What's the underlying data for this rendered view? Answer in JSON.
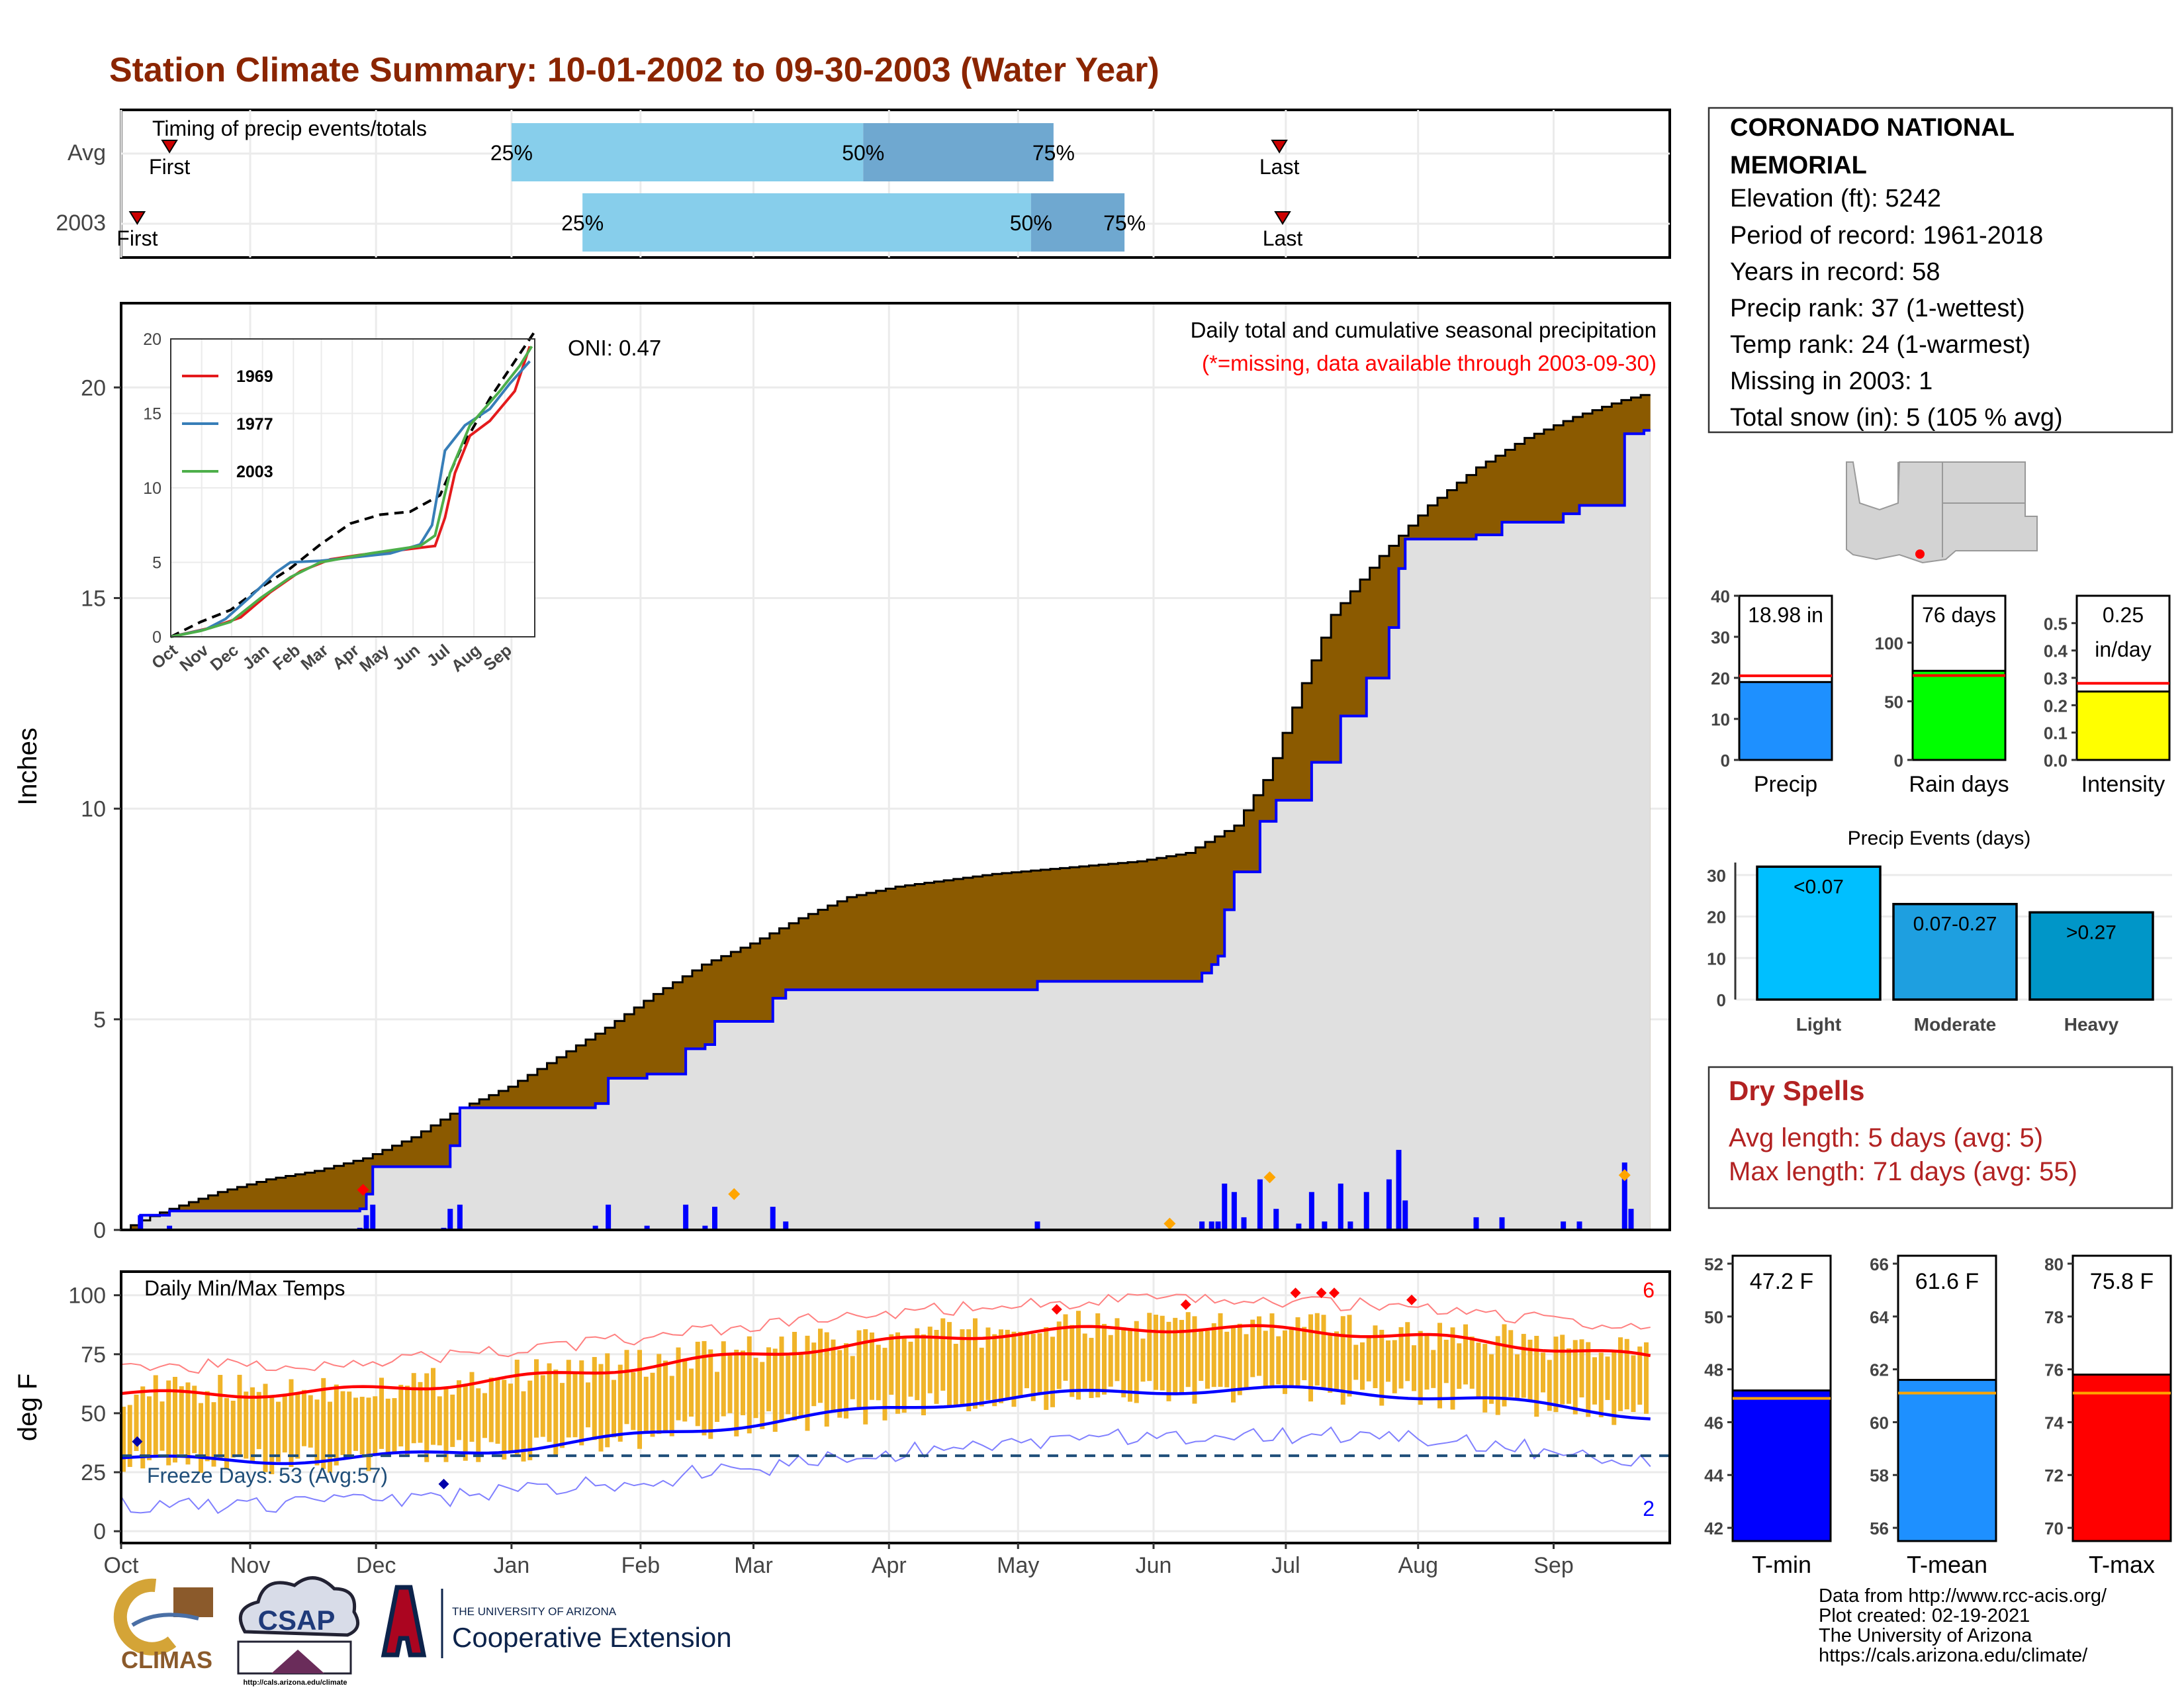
{
  "title": "Station Climate Summary: 10-01-2002 to 09-30-2003 (Water Year)",
  "colors": {
    "title": "#8B2500",
    "brown": "#8B5A00",
    "grey_fill": "#E0E0E0",
    "blue": "#0000FF",
    "light_blue": "#87CEEB",
    "mid_blue": "#6FA8D0",
    "tmin_blue": "#0000FF",
    "tmean_blue": "#1E90FF",
    "tmax_red": "#FF0000",
    "gold": "#F0B429",
    "rain_green": "#00FF00",
    "intensity_yellow": "#FFFF00",
    "event_light": "#00BFFF",
    "event_mod": "#1EA0E0",
    "event_heavy": "#0096C8",
    "dry_red": "#B22222",
    "freeze_line": "#1F4E79"
  },
  "months": [
    "Oct",
    "Nov",
    "Dec",
    "Jan",
    "Feb",
    "Mar",
    "Apr",
    "May",
    "Jun",
    "Jul",
    "Aug",
    "Sep"
  ],
  "timing": {
    "label": "Timing of precip events/totals",
    "rows": [
      "Avg",
      "2003"
    ],
    "first_label": "First",
    "last_label": "Last",
    "avg": {
      "first_day": 15,
      "p25": 121,
      "p50": 230,
      "p75": 289,
      "last_day": 359
    },
    "y2003": {
      "first_day": 5,
      "p25": 143,
      "p50": 282,
      "p75": 311,
      "last_day": 360
    },
    "pct_labels": [
      "25%",
      "50%",
      "75%"
    ]
  },
  "main": {
    "ylabel": "Inches",
    "oni": "ONI: 0.47",
    "desc1": "Daily total and cumulative seasonal precipitation",
    "desc2": "(*=missing, data available through 2003-09-30)",
    "yticks": [
      0,
      5,
      10,
      15,
      20
    ],
    "ylim": [
      0,
      22
    ],
    "avg_cum": [
      [
        0,
        0
      ],
      [
        8,
        0.3
      ],
      [
        15,
        0.5
      ],
      [
        30,
        0.9
      ],
      [
        45,
        1.2
      ],
      [
        60,
        1.4
      ],
      [
        75,
        1.7
      ],
      [
        90,
        2.2
      ],
      [
        105,
        2.9
      ],
      [
        120,
        3.4
      ],
      [
        135,
        4.1
      ],
      [
        150,
        4.8
      ],
      [
        165,
        5.6
      ],
      [
        180,
        6.3
      ],
      [
        195,
        6.8
      ],
      [
        210,
        7.4
      ],
      [
        225,
        7.9
      ],
      [
        240,
        8.15
      ],
      [
        255,
        8.3
      ],
      [
        270,
        8.45
      ],
      [
        285,
        8.55
      ],
      [
        300,
        8.65
      ],
      [
        315,
        8.75
      ],
      [
        330,
        8.95
      ],
      [
        345,
        9.6
      ],
      [
        355,
        10.8
      ],
      [
        365,
        12.8
      ],
      [
        375,
        14.6
      ],
      [
        390,
        16.0
      ],
      [
        405,
        17.2
      ],
      [
        420,
        18.1
      ],
      [
        435,
        18.8
      ],
      [
        450,
        19.3
      ],
      [
        465,
        19.7
      ],
      [
        480,
        20.0
      ]
    ],
    "obs_cum_steps": [
      [
        0,
        0
      ],
      [
        6,
        0.35
      ],
      [
        15,
        0.45
      ],
      [
        60,
        0.45
      ],
      [
        74,
        0.5
      ],
      [
        76,
        0.85
      ],
      [
        78,
        1.5
      ],
      [
        98,
        1.5
      ],
      [
        102,
        2.0
      ],
      [
        105,
        2.9
      ],
      [
        145,
        2.9
      ],
      [
        147,
        3.0
      ],
      [
        151,
        3.6
      ],
      [
        160,
        3.6
      ],
      [
        163,
        3.7
      ],
      [
        172,
        3.7
      ],
      [
        175,
        4.3
      ],
      [
        181,
        4.4
      ],
      [
        184,
        4.95
      ],
      [
        200,
        4.95
      ],
      [
        202,
        5.5
      ],
      [
        206,
        5.7
      ],
      [
        282,
        5.7
      ],
      [
        284,
        5.9
      ],
      [
        305,
        5.9
      ],
      [
        335,
        6.1
      ],
      [
        338,
        6.3
      ],
      [
        340,
        6.5
      ],
      [
        342,
        7.6
      ],
      [
        345,
        8.5
      ],
      [
        353,
        9.7
      ],
      [
        358,
        10.2
      ],
      [
        369,
        11.1
      ],
      [
        378,
        12.2
      ],
      [
        386,
        13.1
      ],
      [
        393,
        14.3
      ],
      [
        396,
        15.7
      ],
      [
        398,
        16.4
      ],
      [
        420,
        16.5
      ],
      [
        428,
        16.8
      ],
      [
        445,
        16.8
      ],
      [
        447,
        17.0
      ],
      [
        452,
        17.2
      ],
      [
        464,
        17.2
      ],
      [
        466,
        18.9
      ],
      [
        472,
        18.98
      ]
    ],
    "daily_bars": [
      [
        6,
        0.35
      ],
      [
        15,
        0.1
      ],
      [
        74,
        0.05
      ],
      [
        76,
        0.35
      ],
      [
        78,
        0.6
      ],
      [
        100,
        0.05
      ],
      [
        102,
        0.5
      ],
      [
        105,
        0.6
      ],
      [
        147,
        0.1
      ],
      [
        151,
        0.6
      ],
      [
        163,
        0.1
      ],
      [
        175,
        0.6
      ],
      [
        181,
        0.1
      ],
      [
        184,
        0.55
      ],
      [
        202,
        0.55
      ],
      [
        206,
        0.2
      ],
      [
        284,
        0.2
      ],
      [
        335,
        0.2
      ],
      [
        338,
        0.2
      ],
      [
        340,
        0.2
      ],
      [
        342,
        1.1
      ],
      [
        345,
        0.9
      ],
      [
        348,
        0.3
      ],
      [
        353,
        1.2
      ],
      [
        358,
        0.5
      ],
      [
        365,
        0.15
      ],
      [
        369,
        0.9
      ],
      [
        373,
        0.2
      ],
      [
        378,
        1.1
      ],
      [
        381,
        0.2
      ],
      [
        386,
        0.9
      ],
      [
        393,
        1.2
      ],
      [
        396,
        1.9
      ],
      [
        398,
        0.7
      ],
      [
        420,
        0.3
      ],
      [
        428,
        0.3
      ],
      [
        447,
        0.2
      ],
      [
        452,
        0.2
      ],
      [
        466,
        1.6
      ],
      [
        468,
        0.5
      ]
    ],
    "max_markers": [
      [
        75,
        0.95,
        "red"
      ],
      [
        190,
        0.85,
        "orange"
      ],
      [
        325,
        0.15,
        "orange"
      ],
      [
        356,
        1.25,
        "orange"
      ],
      [
        466,
        1.3,
        "orange"
      ]
    ],
    "inset": {
      "yticks": [
        0,
        5,
        10,
        15,
        20
      ],
      "months": [
        "Oct",
        "Nov",
        "Dec",
        "Jan",
        "Feb",
        "Mar",
        "Apr",
        "May",
        "Jun",
        "Jul",
        "Aug",
        "Sep"
      ],
      "series": [
        {
          "name": "1969",
          "color": "#E41A1C"
        },
        {
          "name": "1977",
          "color": "#377EB8"
        },
        {
          "name": "2003",
          "color": "#4DAF4A"
        }
      ]
    }
  },
  "temps": {
    "ylabel": "deg F",
    "label": "Daily Min/Max Temps",
    "freeze_label": "Freeze Days: 53 (Avg:57)",
    "count_top": "6",
    "count_bottom": "2",
    "yticks": [
      0,
      25,
      50,
      75,
      100
    ],
    "ylim": [
      -5,
      110
    ],
    "freeze_line": 32
  },
  "info": {
    "station": "CORONADO NATIONAL",
    "station2": "MEMORIAL",
    "lines": [
      "Elevation (ft): 5242",
      "Period of record: 1961-2018",
      "Years in record: 58",
      "Precip rank: 37 (1-wettest)",
      "Temp rank: 24 (1-warmest)",
      "Missing in 2003: 1",
      "Total snow (in): 5 (105 % avg)"
    ]
  },
  "precip_bars": [
    {
      "name": "Precip",
      "label": "18.98 in",
      "value": 18.98,
      "avg": 20.5,
      "max": 40,
      "ticks": [
        0,
        10,
        20,
        30,
        40
      ],
      "color": "#1E90FF"
    },
    {
      "name": "Rain days",
      "label": "76 days",
      "value": 76,
      "avg": 72,
      "max": 140,
      "ticks": [
        0,
        50,
        100
      ],
      "color": "#00FF00"
    },
    {
      "name": "Intensity",
      "label": "0.25",
      "label2": "in/day",
      "value": 0.25,
      "avg": 0.28,
      "max": 0.6,
      "ticks": [
        "0.0",
        "0.1",
        "0.2",
        "0.3",
        "0.4",
        "0.5"
      ],
      "tickvals": [
        0,
        0.1,
        0.2,
        0.3,
        0.4,
        0.5
      ],
      "color": "#FFFF00"
    }
  ],
  "events": {
    "title": "Precip Events (days)",
    "yticks": [
      0,
      10,
      20,
      30
    ],
    "ymax": 33,
    "bars": [
      {
        "name": "Light",
        "label": "<0.07",
        "value": 32,
        "color": "#00BFFF"
      },
      {
        "name": "Moderate",
        "label": "0.07-0.27",
        "value": 23,
        "color": "#1E9FE0"
      },
      {
        "name": "Heavy",
        "label": ">0.27",
        "value": 21,
        "color": "#0096C8"
      }
    ]
  },
  "dry": {
    "title": "Dry Spells",
    "avg": "Avg length: 5 days (avg: 5)",
    "max": "Max length: 71 days (avg: 55)"
  },
  "temp_bars": [
    {
      "name": "T-min",
      "label": "47.2 F",
      "value": 47.2,
      "avg": 46.9,
      "min": 41.5,
      "max": 52.3,
      "ticks": [
        42,
        44,
        46,
        48,
        50,
        52
      ],
      "color": "#0000FF"
    },
    {
      "name": "T-mean",
      "label": "61.6 F",
      "value": 61.6,
      "avg": 61.1,
      "min": 55.5,
      "max": 66.3,
      "ticks": [
        56,
        58,
        60,
        62,
        64,
        66
      ],
      "color": "#1E90FF"
    },
    {
      "name": "T-max",
      "label": "75.8 F",
      "value": 75.8,
      "avg": 75.1,
      "min": 69.5,
      "max": 80.3,
      "ticks": [
        70,
        72,
        74,
        76,
        78,
        80
      ],
      "color": "#FF0000"
    }
  ],
  "credits": [
    "Data from http://www.rcc-acis.org/",
    "Plot created: 02-19-2021",
    "The University of Arizona",
    "https://cals.arizona.edu/climate/"
  ],
  "logos": {
    "climas": "CLIMAS",
    "csap": "CSAP",
    "csap_url": "http://cals.arizona.edu/climate",
    "ua_small": "THE UNIVERSITY OF ARIZONA",
    "ua_ext": "Cooperative Extension"
  }
}
